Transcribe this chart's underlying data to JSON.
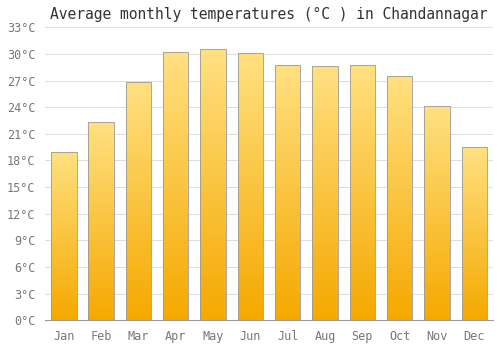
{
  "months": [
    "Jan",
    "Feb",
    "Mar",
    "Apr",
    "May",
    "Jun",
    "Jul",
    "Aug",
    "Sep",
    "Oct",
    "Nov",
    "Dec"
  ],
  "values": [
    19.0,
    22.3,
    26.8,
    30.2,
    30.5,
    30.1,
    28.8,
    28.6,
    28.8,
    27.5,
    24.1,
    19.5
  ],
  "bar_color_bottom": "#F5A800",
  "bar_color_top": "#FFE080",
  "bar_edge_color": "#999999",
  "title": "Average monthly temperatures (°C ) in Chandannagar",
  "ylim": [
    0,
    33
  ],
  "yticks": [
    0,
    3,
    6,
    9,
    12,
    15,
    18,
    21,
    24,
    27,
    30,
    33
  ],
  "ytick_labels": [
    "0°C",
    "3°C",
    "6°C",
    "9°C",
    "12°C",
    "15°C",
    "18°C",
    "21°C",
    "24°C",
    "27°C",
    "30°C",
    "33°C"
  ],
  "title_fontsize": 10.5,
  "tick_fontsize": 8.5,
  "bg_color": "#FFFFFF",
  "grid_color": "#DDDDDD",
  "bar_width": 0.68,
  "n_gradient_steps": 100
}
